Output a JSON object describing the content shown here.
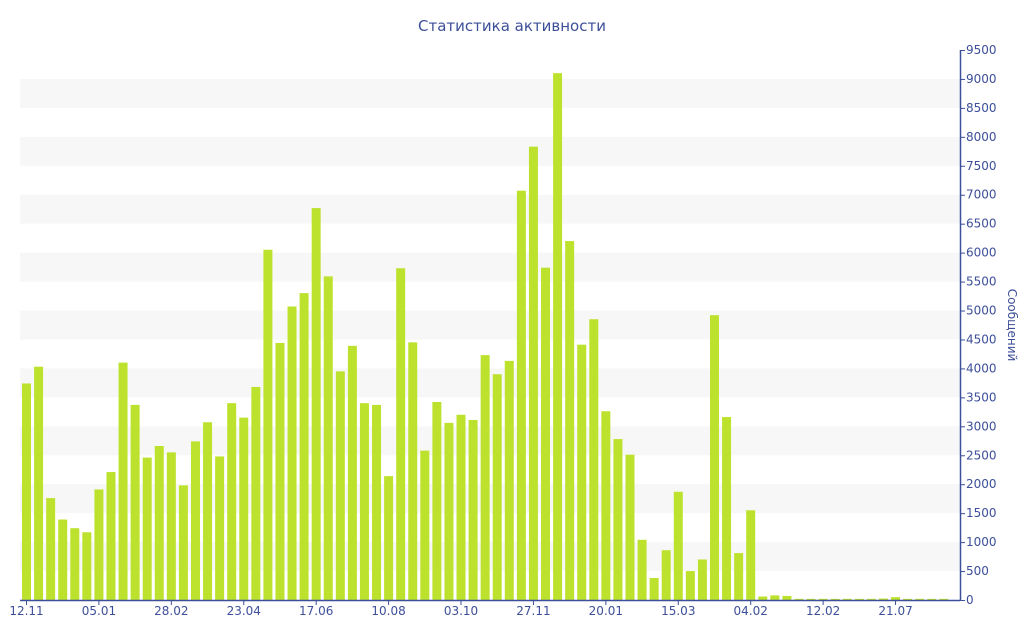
{
  "chart_data": {
    "type": "bar",
    "title": "Статистика активности",
    "ylabel": "Сообщений",
    "xlabel": "",
    "ylim": [
      0,
      9500
    ],
    "ytick_step": 500,
    "grid": "alternating horizontal bands",
    "bar_color": "#bde22e",
    "band_color": "#f7f7f7",
    "text_color": "#3d4f99",
    "x_tick_labels": [
      {
        "index": 0,
        "label": "12.11"
      },
      {
        "index": 6,
        "label": "05.01"
      },
      {
        "index": 12,
        "label": "28.02"
      },
      {
        "index": 18,
        "label": "23.04"
      },
      {
        "index": 24,
        "label": "17.06"
      },
      {
        "index": 30,
        "label": "10.08"
      },
      {
        "index": 36,
        "label": "03.10"
      },
      {
        "index": 42,
        "label": "27.11"
      },
      {
        "index": 48,
        "label": "20.01"
      },
      {
        "index": 54,
        "label": "15.03"
      },
      {
        "index": 60,
        "label": "04.02"
      },
      {
        "index": 66,
        "label": "12.02"
      },
      {
        "index": 72,
        "label": "21.07"
      }
    ],
    "values": [
      3740,
      4030,
      1760,
      1390,
      1240,
      1170,
      1910,
      2210,
      4100,
      3370,
      2460,
      2660,
      2550,
      1980,
      2740,
      3070,
      2480,
      3400,
      3150,
      3680,
      6050,
      4440,
      5070,
      5300,
      6770,
      5590,
      3950,
      4390,
      3400,
      3370,
      2140,
      5730,
      4450,
      2580,
      3420,
      3060,
      3200,
      3110,
      4230,
      3900,
      4130,
      7070,
      7830,
      5740,
      9100,
      6200,
      4410,
      4850,
      3260,
      2780,
      2510,
      1040,
      380,
      860,
      1870,
      500,
      700,
      4920,
      3160,
      810,
      1550,
      60,
      80,
      70,
      20,
      20,
      20,
      20,
      20,
      20,
      20,
      25,
      50,
      20,
      20,
      20,
      20
    ]
  }
}
